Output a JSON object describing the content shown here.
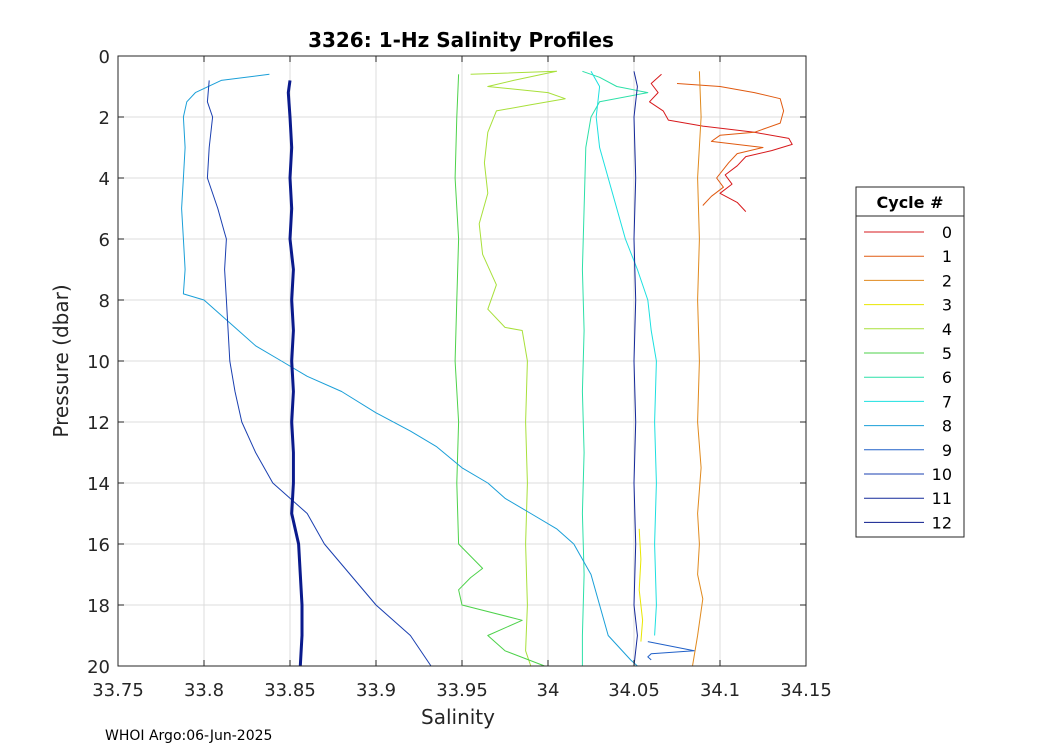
{
  "chart_data": {
    "type": "line",
    "title": "3326: 1-Hz Salinity Profiles",
    "xlabel": "Salinity",
    "ylabel": "Pressure (dbar)",
    "xlim": [
      33.75,
      34.15
    ],
    "ylim": [
      0,
      20
    ],
    "y_reversed": true,
    "grid": true,
    "xticks": [
      33.75,
      33.8,
      33.85,
      33.9,
      33.95,
      34,
      34.05,
      34.1,
      34.15
    ],
    "xtick_labels": [
      "33.75",
      "33.8",
      "33.85",
      "33.9",
      "33.95",
      "34",
      "34.05",
      "34.1",
      "34.15"
    ],
    "yticks": [
      0,
      2,
      4,
      6,
      8,
      10,
      12,
      14,
      16,
      18,
      20
    ],
    "ytick_labels": [
      "0",
      "2",
      "4",
      "6",
      "8",
      "10",
      "12",
      "14",
      "16",
      "18",
      "20"
    ],
    "legend_title": "Cycle #",
    "legend_position": "right",
    "footer": "WHOI Argo:06-Jun-2025",
    "series": [
      {
        "name": "0",
        "color": "#d7191c",
        "width": 1,
        "points": [
          [
            34.066,
            0.6
          ],
          [
            34.06,
            0.9
          ],
          [
            34.064,
            1.2
          ],
          [
            34.059,
            1.5
          ],
          [
            34.067,
            1.8
          ],
          [
            34.07,
            2.1
          ],
          [
            34.09,
            2.3
          ],
          [
            34.12,
            2.5
          ],
          [
            34.14,
            2.7
          ],
          [
            34.142,
            2.9
          ],
          [
            34.13,
            3.1
          ],
          [
            34.115,
            3.3
          ],
          [
            34.11,
            3.6
          ],
          [
            34.103,
            3.9
          ],
          [
            34.107,
            4.2
          ],
          [
            34.1,
            4.5
          ],
          [
            34.11,
            4.8
          ],
          [
            34.115,
            5.1
          ]
        ]
      },
      {
        "name": "1",
        "color": "#e05a10",
        "width": 1,
        "points": [
          [
            34.075,
            0.9
          ],
          [
            34.1,
            1.0
          ],
          [
            34.12,
            1.2
          ],
          [
            34.135,
            1.4
          ],
          [
            34.137,
            1.8
          ],
          [
            34.135,
            2.2
          ],
          [
            34.12,
            2.5
          ],
          [
            34.1,
            2.6
          ],
          [
            34.095,
            2.8
          ],
          [
            34.125,
            3.0
          ],
          [
            34.11,
            3.2
          ],
          [
            34.105,
            3.5
          ],
          [
            34.098,
            4.0
          ],
          [
            34.102,
            4.3
          ],
          [
            34.095,
            4.6
          ],
          [
            34.09,
            4.9
          ]
        ]
      },
      {
        "name": "2",
        "color": "#e08a1e",
        "width": 1,
        "points": [
          [
            34.088,
            0.5
          ],
          [
            34.089,
            2
          ],
          [
            34.087,
            4
          ],
          [
            34.088,
            6
          ],
          [
            34.087,
            8
          ],
          [
            34.088,
            10
          ],
          [
            34.087,
            12
          ],
          [
            34.089,
            13.5
          ],
          [
            34.087,
            15
          ],
          [
            34.088,
            16
          ],
          [
            34.087,
            17
          ],
          [
            34.09,
            17.8
          ],
          [
            34.087,
            19
          ],
          [
            34.084,
            20
          ]
        ]
      },
      {
        "name": "3",
        "color": "#e8e600",
        "width": 1,
        "points": [
          [
            34.053,
            15.5
          ],
          [
            34.054,
            16.5
          ],
          [
            34.053,
            17.5
          ],
          [
            34.055,
            18.5
          ],
          [
            34.054,
            19.2
          ]
        ]
      },
      {
        "name": "4",
        "color": "#a8e03a",
        "width": 1,
        "points": [
          [
            33.955,
            0.6
          ],
          [
            34.005,
            0.5
          ],
          [
            33.98,
            0.8
          ],
          [
            33.965,
            1.0
          ],
          [
            34.0,
            1.2
          ],
          [
            34.01,
            1.4
          ],
          [
            33.99,
            1.6
          ],
          [
            33.97,
            1.8
          ],
          [
            33.965,
            2.5
          ],
          [
            33.963,
            3.5
          ],
          [
            33.965,
            4.5
          ],
          [
            33.96,
            5.5
          ],
          [
            33.962,
            6.5
          ],
          [
            33.97,
            7.5
          ],
          [
            33.965,
            8.3
          ],
          [
            33.975,
            8.9
          ],
          [
            33.985,
            9.0
          ],
          [
            33.988,
            10
          ],
          [
            33.987,
            12
          ],
          [
            33.988,
            14
          ],
          [
            33.987,
            16
          ],
          [
            33.988,
            18
          ],
          [
            33.987,
            19.5
          ],
          [
            33.99,
            20
          ]
        ]
      },
      {
        "name": "5",
        "color": "#4dd24a",
        "width": 1,
        "points": [
          [
            33.948,
            0.6
          ],
          [
            33.947,
            2
          ],
          [
            33.946,
            4
          ],
          [
            33.948,
            6
          ],
          [
            33.947,
            8
          ],
          [
            33.946,
            10
          ],
          [
            33.948,
            12
          ],
          [
            33.947,
            14
          ],
          [
            33.948,
            16
          ],
          [
            33.962,
            16.8
          ],
          [
            33.955,
            17.1
          ],
          [
            33.948,
            17.5
          ],
          [
            33.95,
            18
          ],
          [
            33.985,
            18.5
          ],
          [
            33.965,
            19
          ],
          [
            33.975,
            19.5
          ],
          [
            33.998,
            20
          ]
        ]
      },
      {
        "name": "6",
        "color": "#2ce0a8",
        "width": 1,
        "points": [
          [
            34.02,
            0.5
          ],
          [
            34.03,
            0.7
          ],
          [
            34.04,
            1.0
          ],
          [
            34.058,
            1.2
          ],
          [
            34.03,
            1.5
          ],
          [
            34.025,
            2.0
          ],
          [
            34.022,
            3.0
          ],
          [
            34.021,
            5.0
          ],
          [
            34.02,
            7.0
          ],
          [
            34.021,
            9.0
          ],
          [
            34.02,
            11.0
          ],
          [
            34.021,
            13.0
          ],
          [
            34.02,
            15.0
          ],
          [
            34.021,
            17.0
          ],
          [
            34.02,
            19.0
          ],
          [
            34.02,
            20.0
          ]
        ]
      },
      {
        "name": "7",
        "color": "#1ce0e0",
        "width": 1,
        "points": [
          [
            34.025,
            0.5
          ],
          [
            34.03,
            1.0
          ],
          [
            34.028,
            2.0
          ],
          [
            34.03,
            3.0
          ],
          [
            34.035,
            4.0
          ],
          [
            34.04,
            5.0
          ],
          [
            34.045,
            6.0
          ],
          [
            34.052,
            7.0
          ],
          [
            34.058,
            8.0
          ],
          [
            34.06,
            9.0
          ],
          [
            34.063,
            10.0
          ],
          [
            34.062,
            12.0
          ],
          [
            34.063,
            14.0
          ],
          [
            34.062,
            16.0
          ],
          [
            34.063,
            18.0
          ],
          [
            34.062,
            19.0
          ]
        ]
      },
      {
        "name": "8",
        "color": "#1a9fd8",
        "width": 1,
        "points": [
          [
            33.838,
            0.6
          ],
          [
            33.81,
            0.8
          ],
          [
            33.795,
            1.2
          ],
          [
            33.79,
            1.5
          ],
          [
            33.788,
            2.0
          ],
          [
            33.789,
            3.0
          ],
          [
            33.788,
            4.0
          ],
          [
            33.787,
            5.0
          ],
          [
            33.788,
            6.0
          ],
          [
            33.789,
            7.0
          ],
          [
            33.788,
            7.8
          ],
          [
            33.8,
            8.0
          ],
          [
            33.81,
            8.5
          ],
          [
            33.82,
            9.0
          ],
          [
            33.83,
            9.5
          ],
          [
            33.845,
            10.0
          ],
          [
            33.86,
            10.5
          ],
          [
            33.88,
            11.0
          ],
          [
            33.9,
            11.7
          ],
          [
            33.92,
            12.3
          ],
          [
            33.935,
            12.8
          ],
          [
            33.95,
            13.5
          ],
          [
            33.965,
            14.0
          ],
          [
            33.975,
            14.5
          ],
          [
            33.99,
            15.0
          ],
          [
            34.005,
            15.5
          ],
          [
            34.015,
            16.0
          ],
          [
            34.02,
            16.5
          ],
          [
            34.025,
            17.0
          ],
          [
            34.03,
            18.0
          ],
          [
            34.035,
            19.0
          ],
          [
            34.048,
            19.8
          ],
          [
            34.052,
            20.0
          ]
        ]
      },
      {
        "name": "9",
        "color": "#2060c8",
        "width": 1,
        "points": [
          [
            34.058,
            19.2
          ],
          [
            34.085,
            19.5
          ],
          [
            34.06,
            19.6
          ],
          [
            34.058,
            19.7
          ],
          [
            34.06,
            19.8
          ]
        ]
      },
      {
        "name": "10",
        "color": "#1a3fb0",
        "width": 1,
        "points": [
          [
            33.803,
            0.8
          ],
          [
            33.802,
            1.5
          ],
          [
            33.805,
            2.0
          ],
          [
            33.803,
            3.0
          ],
          [
            33.802,
            4.0
          ],
          [
            33.808,
            5.0
          ],
          [
            33.812,
            5.8
          ],
          [
            33.813,
            6.0
          ],
          [
            33.812,
            7.0
          ],
          [
            33.813,
            8.0
          ],
          [
            33.814,
            9.0
          ],
          [
            33.815,
            10.0
          ],
          [
            33.818,
            11.0
          ],
          [
            33.822,
            12.0
          ],
          [
            33.83,
            13.0
          ],
          [
            33.84,
            14.0
          ],
          [
            33.86,
            15.0
          ],
          [
            33.87,
            16.0
          ],
          [
            33.885,
            17.0
          ],
          [
            33.9,
            18.0
          ],
          [
            33.92,
            19.0
          ],
          [
            33.932,
            20.0
          ]
        ]
      },
      {
        "name": "11",
        "color": "#14289a",
        "width": 1,
        "points": [
          [
            34.05,
            0.5
          ],
          [
            34.052,
            1.0
          ],
          [
            34.05,
            2.0
          ],
          [
            34.051,
            4.0
          ],
          [
            34.05,
            6.0
          ],
          [
            34.051,
            8.0
          ],
          [
            34.05,
            10.0
          ],
          [
            34.051,
            12.0
          ],
          [
            34.05,
            14.0
          ],
          [
            34.051,
            16.0
          ],
          [
            34.05,
            18.0
          ],
          [
            34.052,
            19.0
          ],
          [
            34.05,
            20.0
          ]
        ]
      },
      {
        "name": "12",
        "color": "#0a1a8c",
        "width": 3,
        "points": [
          [
            33.85,
            0.8
          ],
          [
            33.849,
            1.2
          ],
          [
            33.85,
            2.0
          ],
          [
            33.851,
            3.0
          ],
          [
            33.85,
            4.0
          ],
          [
            33.851,
            5.0
          ],
          [
            33.85,
            6.0
          ],
          [
            33.852,
            7.0
          ],
          [
            33.851,
            8.0
          ],
          [
            33.852,
            9.0
          ],
          [
            33.851,
            10.0
          ],
          [
            33.852,
            11.0
          ],
          [
            33.851,
            12.0
          ],
          [
            33.852,
            13.0
          ],
          [
            33.852,
            14.0
          ],
          [
            33.851,
            15.0
          ],
          [
            33.855,
            16.0
          ],
          [
            33.856,
            17.0
          ],
          [
            33.857,
            18.0
          ],
          [
            33.857,
            19.0
          ],
          [
            33.856,
            20.0
          ]
        ]
      }
    ]
  }
}
